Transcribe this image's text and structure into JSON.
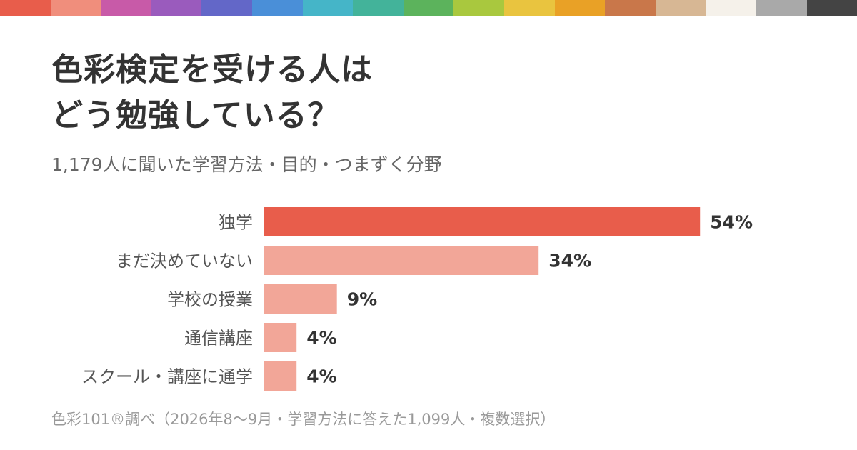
{
  "palette": [
    "#e85d4b",
    "#f08e7c",
    "#c85aa8",
    "#9a5bbd",
    "#6367c8",
    "#4a8fd8",
    "#45b5c8",
    "#43b39a",
    "#5cb35c",
    "#a9c83e",
    "#e9c43f",
    "#e9a126",
    "#c9774a",
    "#d7b794",
    "#f5f1ea",
    "#a9a9a9",
    "#444444"
  ],
  "title": {
    "line1": "色彩検定を受ける人は",
    "line2": "どう勉強している？"
  },
  "subtitle": "1,179人に聞いた学習方法・目的・つまずく分野",
  "source": "色彩101®調べ（2026年8〜9月・学習方法に答えた1,099人・複数選択）",
  "chart_data": {
    "type": "bar",
    "orientation": "horizontal",
    "categories": [
      "独学",
      "まだ決めていない",
      "学校の授業",
      "通信講座",
      "スクール・講座に通学"
    ],
    "values": [
      54,
      34,
      9,
      4,
      4
    ],
    "value_labels": [
      "54%",
      "34%",
      "9%",
      "4%",
      "4%"
    ],
    "unit": "%",
    "xlim": [
      0,
      100
    ],
    "grid": false,
    "colors": {
      "highlight": "#e85d4b",
      "default": "#f2a698"
    }
  }
}
